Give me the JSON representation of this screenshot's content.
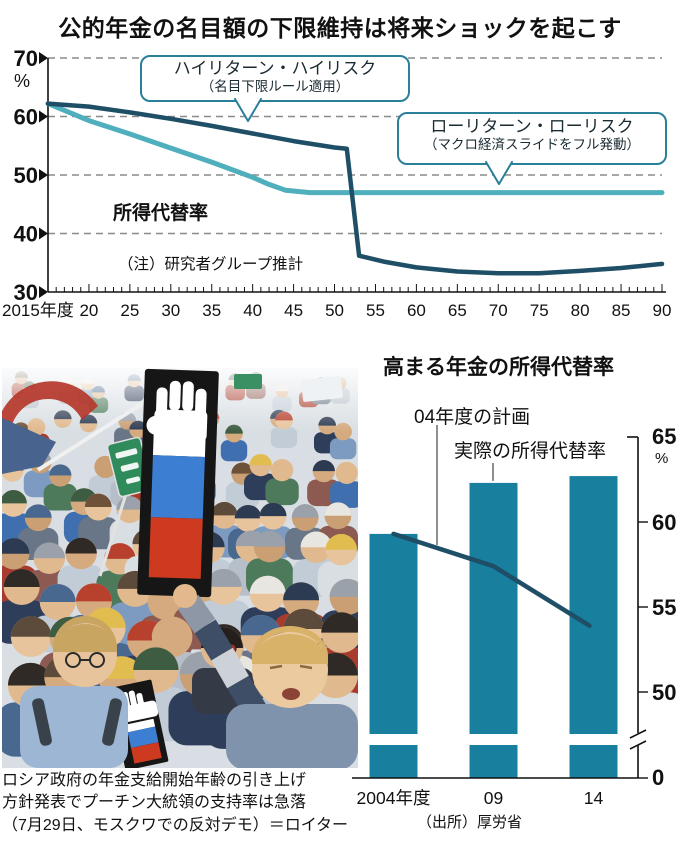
{
  "page": {
    "title": "公的年金の名目額の下限維持は将来ショックを起こす"
  },
  "colors": {
    "dark_line": "#1f4f66",
    "light_line": "#4fafbc",
    "bar": "#187f9f",
    "callout_border": "#2a7f99",
    "grid": "#8a8a8a",
    "axis": "#111111",
    "flag_blue": "#3b7ed2",
    "flag_red": "#cd3a20"
  },
  "photo": {
    "caption_lines": [
      "ロシア政府の年金支給開始年齢の引き上げ",
      "方針発表でプーチン大統領の支持率は急落",
      "（7月29日、モスクワでの反対デモ）＝ロイター"
    ]
  },
  "chart_data": [
    {
      "type": "line",
      "title": "公的年金の名目額の下限維持は将来ショックを起こす",
      "xlabel": "",
      "ylabel": "%",
      "ylim": [
        30,
        70
      ],
      "yticks": [
        70,
        60,
        50,
        40,
        30
      ],
      "xlim": [
        2015,
        2090
      ],
      "x_tick_labels": [
        "2015年度",
        "20",
        "25",
        "30",
        "35",
        "40",
        "45",
        "50",
        "55",
        "60",
        "65",
        "70",
        "75",
        "80",
        "85",
        "90"
      ],
      "grid": "dashed-horizontal",
      "series_label": "所得代替率",
      "note": "（注）研究者グループ推計",
      "series": [
        {
          "name": "ハイリターン・ハイリスク（名目下限ルール適用）",
          "color": "#1f4f66",
          "points": [
            [
              2015,
              62.2
            ],
            [
              2020,
              61.7
            ],
            [
              2025,
              60.7
            ],
            [
              2030,
              59.6
            ],
            [
              2035,
              58.4
            ],
            [
              2040,
              57.1
            ],
            [
              2045,
              55.8
            ],
            [
              2050,
              54.7
            ],
            [
              2051.5,
              54.5
            ],
            [
              2053,
              36.2
            ],
            [
              2056,
              35.2
            ],
            [
              2060,
              34.2
            ],
            [
              2065,
              33.5
            ],
            [
              2070,
              33.2
            ],
            [
              2075,
              33.2
            ],
            [
              2080,
              33.6
            ],
            [
              2085,
              34.1
            ],
            [
              2090,
              34.8
            ]
          ]
        },
        {
          "name": "ローリターン・ローリスク（マクロ経済スライドをフル発動）",
          "color": "#4fafbc",
          "points": [
            [
              2015,
              62.2
            ],
            [
              2020,
              59.3
            ],
            [
              2025,
              57.0
            ],
            [
              2030,
              54.6
            ],
            [
              2035,
              52.2
            ],
            [
              2040,
              49.6
            ],
            [
              2042,
              48.4
            ],
            [
              2044,
              47.4
            ],
            [
              2047,
              47.0
            ],
            [
              2090,
              47.0
            ]
          ]
        }
      ],
      "callouts": [
        {
          "line1": "ハイリターン・ハイリスク",
          "line2": "（名目下限ルール適用）",
          "target_series": 0
        },
        {
          "line1": "ローリターン・ローリスク",
          "line2": "（マクロ経済スライドをフル発動）",
          "target_series": 1
        }
      ]
    },
    {
      "type": "bar",
      "title": "高まる年金の所得代替率",
      "categories": [
        "2004年度",
        "09",
        "14"
      ],
      "values": [
        59.3,
        62.3,
        62.7
      ],
      "bars_label": "実際の所得代替率",
      "line_series": {
        "name": "04年度の計画",
        "points": [
          [
            2004,
            59.3
          ],
          [
            2009,
            57.4
          ],
          [
            2013.8,
            53.9
          ]
        ]
      },
      "unit": "%",
      "yticks": [
        65,
        60,
        55,
        50,
        0
      ],
      "zero_label": "0",
      "axis_break": true,
      "axis_side": "right",
      "source": "（出所）厚労省"
    }
  ]
}
